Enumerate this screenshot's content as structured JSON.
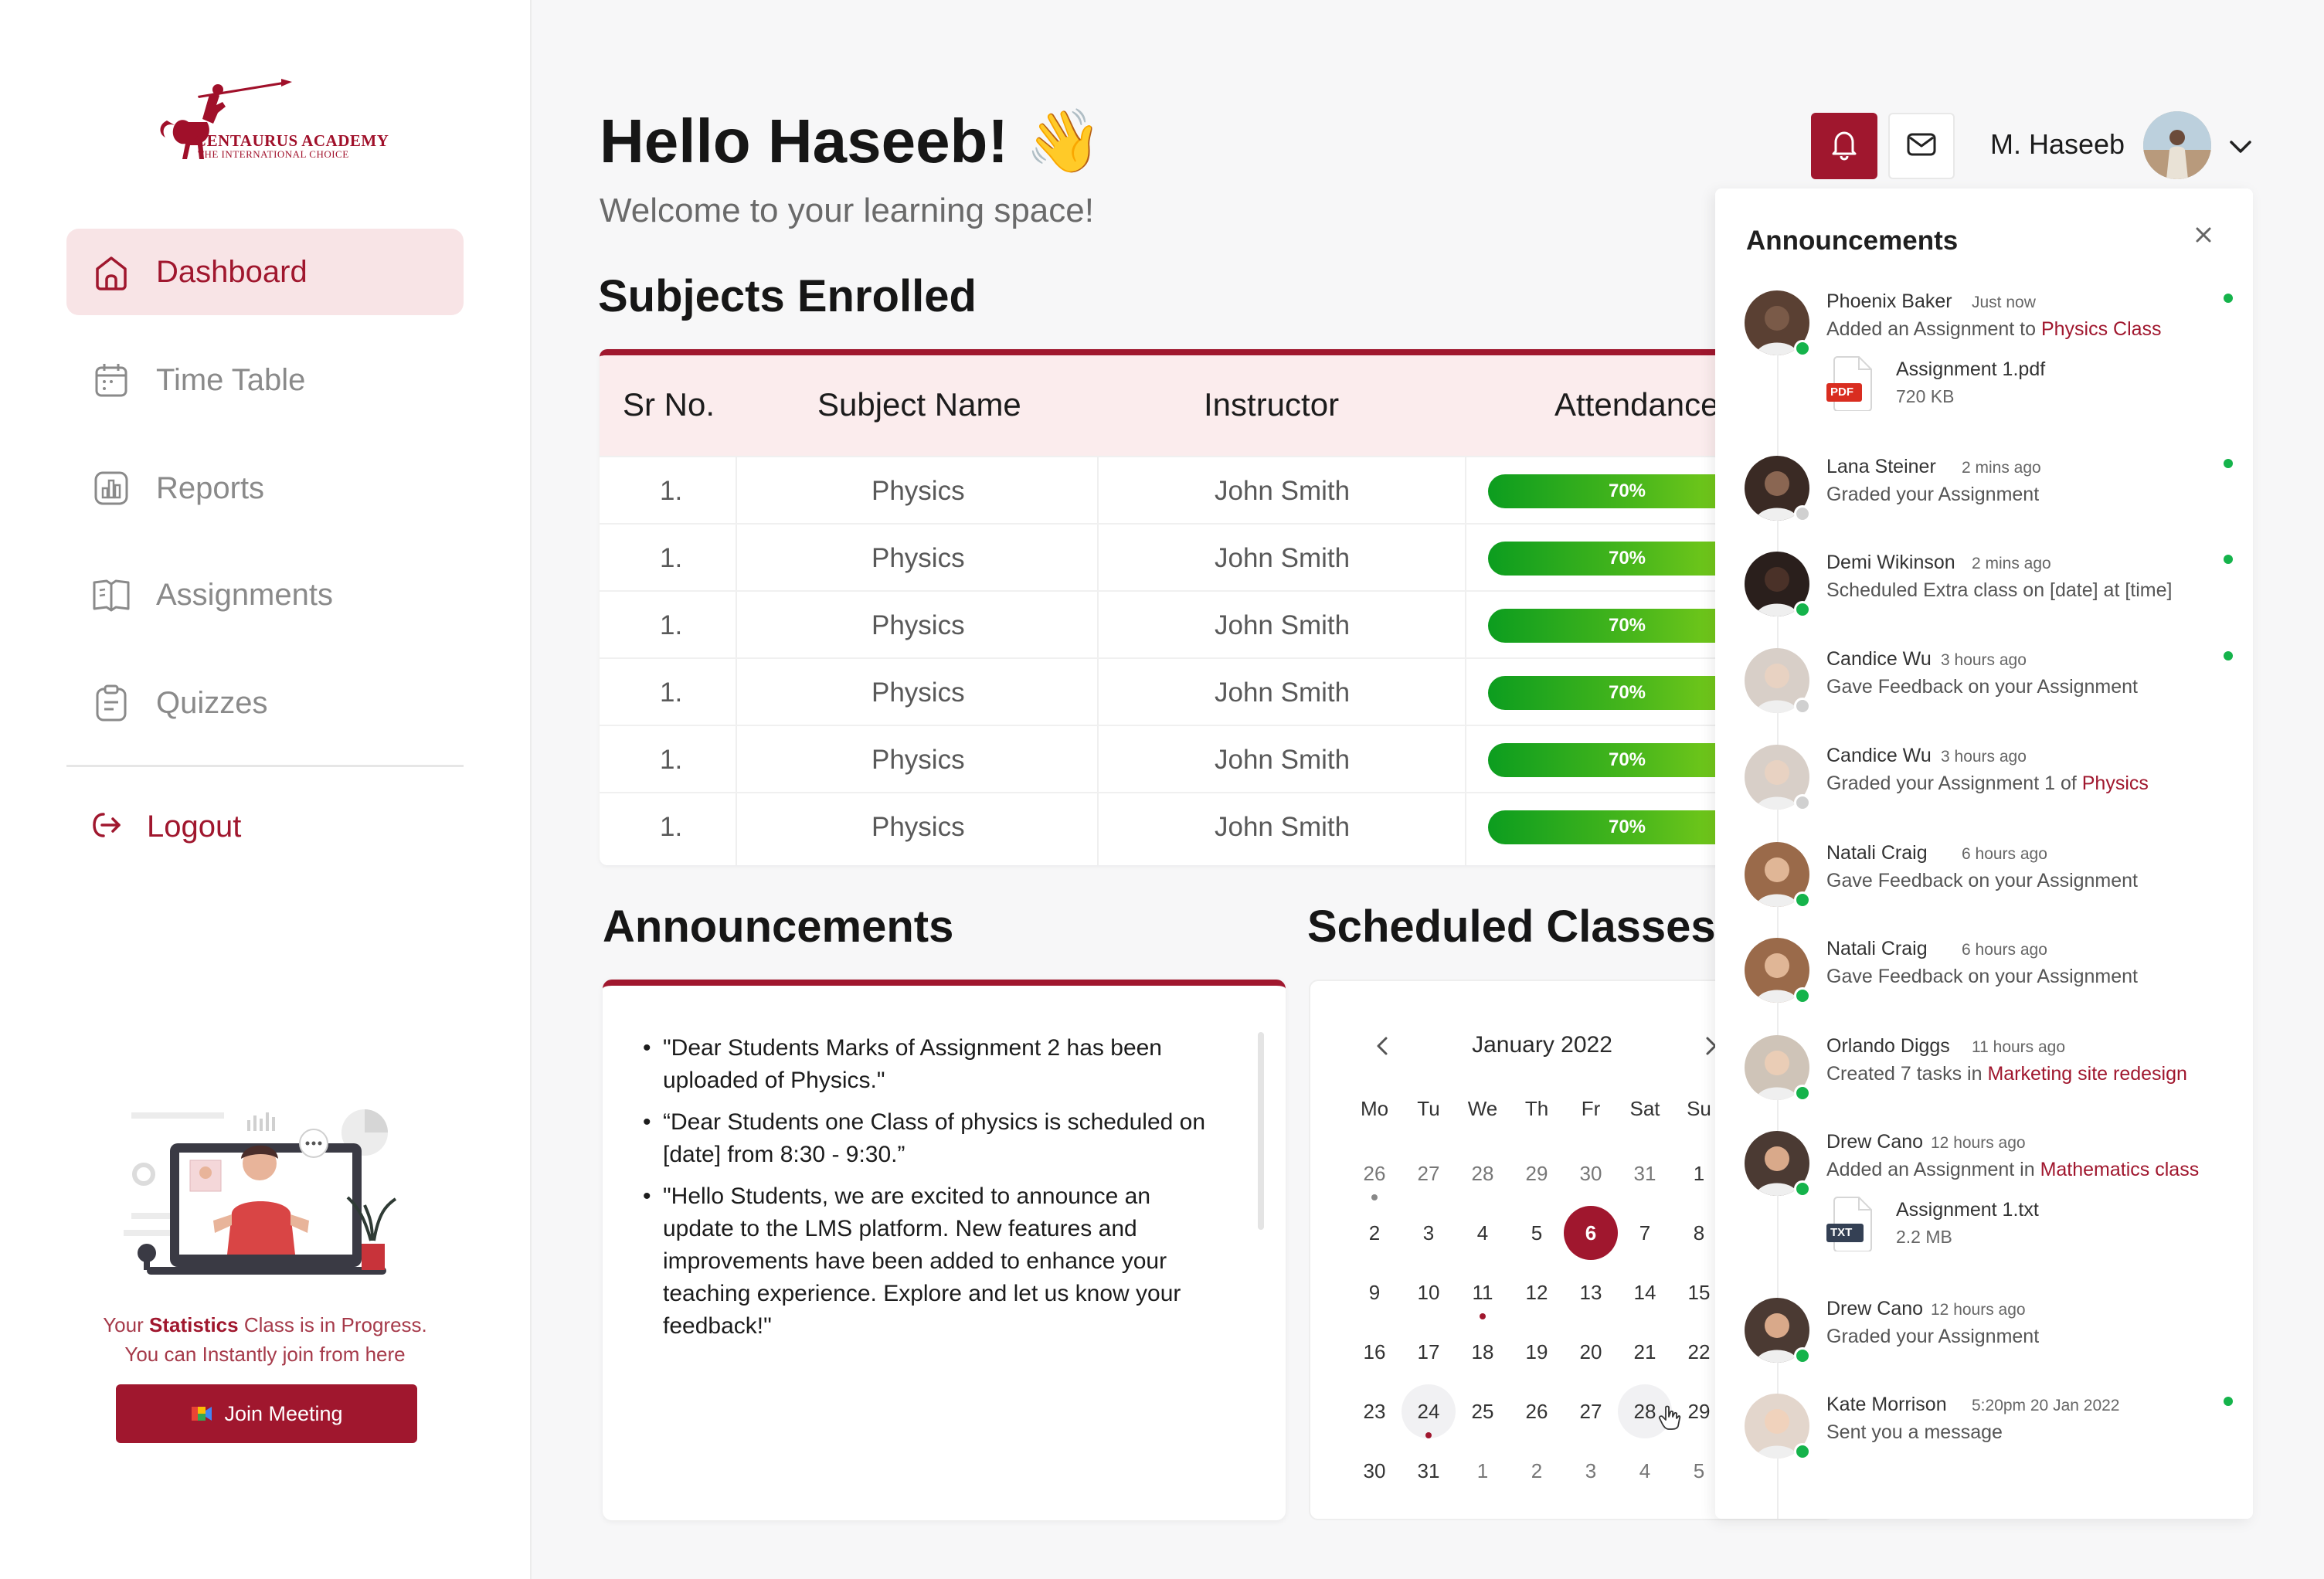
{
  "brand": {
    "name": "CENTAURUS ACADEMY",
    "tagline": "THE INTERNATIONAL CHOICE",
    "color": "#a0172e"
  },
  "sidebar": {
    "items": [
      {
        "label": "Dashboard",
        "icon": "home-icon",
        "active": true
      },
      {
        "label": "Time Table",
        "icon": "calendar-icon"
      },
      {
        "label": "Reports",
        "icon": "bar-chart-icon"
      },
      {
        "label": "Assignments",
        "icon": "book-icon"
      },
      {
        "label": "Quizzes",
        "icon": "clipboard-icon"
      }
    ],
    "logout": "Logout",
    "class_status_prefix": "Your ",
    "class_status_subject": "Statistics",
    "class_status_suffix": " Class is in Progress.",
    "class_status_line2": "You can Instantly join from here",
    "join_button": "Join Meeting"
  },
  "header": {
    "greeting": "Hello Haseeb! 👋",
    "subtitle": "Welcome to your learning space!",
    "user_name": "M. Haseeb"
  },
  "subjects": {
    "title": "Subjects Enrolled",
    "columns": [
      "Sr No.",
      "Subject Name",
      "Instructor",
      "Attendance"
    ],
    "rows": [
      {
        "sr": "1.",
        "subject": "Physics",
        "instructor": "John Smith",
        "attendance": "70%"
      },
      {
        "sr": "1.",
        "subject": "Physics",
        "instructor": "John Smith",
        "attendance": "70%"
      },
      {
        "sr": "1.",
        "subject": "Physics",
        "instructor": "John Smith",
        "attendance": "70%"
      },
      {
        "sr": "1.",
        "subject": "Physics",
        "instructor": "John Smith",
        "attendance": "70%"
      },
      {
        "sr": "1.",
        "subject": "Physics",
        "instructor": "John Smith",
        "attendance": "70%"
      },
      {
        "sr": "1.",
        "subject": "Physics",
        "instructor": "John Smith",
        "attendance": "70%"
      }
    ]
  },
  "announcements": {
    "title": "Announcements",
    "items": [
      "\"Dear Students Marks of Assignment 2 has been uploaded of Physics.\"",
      "“Dear Students one Class of physics is scheduled on [date] from 8:30 - 9:30.”",
      "\"Hello Students, we are excited to announce an update to the LMS platform. New features and improvements have been added to enhance your teaching experience. Explore and let us know your feedback!\""
    ]
  },
  "scheduled": {
    "title": "Scheduled Classes",
    "month": "January 2022",
    "weekdays": [
      "Mo",
      "Tu",
      "We",
      "Th",
      "Fr",
      "Sat",
      "Su"
    ],
    "weeks": [
      [
        "26",
        "27",
        "28",
        "29",
        "30",
        "31",
        "1"
      ],
      [
        "2",
        "3",
        "4",
        "5",
        "6",
        "7",
        "8"
      ],
      [
        "9",
        "10",
        "11",
        "12",
        "13",
        "14",
        "15"
      ],
      [
        "16",
        "17",
        "18",
        "19",
        "20",
        "21",
        "22"
      ],
      [
        "23",
        "24",
        "25",
        "26",
        "27",
        "28",
        "29"
      ],
      [
        "30",
        "31",
        "1",
        "2",
        "3",
        "4",
        "5"
      ]
    ],
    "selected_day": "6"
  },
  "notifications": {
    "title": "Announcements",
    "items": [
      {
        "name": "Phoenix Baker",
        "time": "Just now",
        "text": "Added an Assignment to ",
        "link": "Physics Class",
        "online": true,
        "unread": true,
        "file": {
          "name": "Assignment 1.pdf",
          "size": "720 KB",
          "type": "PDF"
        }
      },
      {
        "name": "Lana Steiner",
        "time": "2 mins ago",
        "text": "Graded your Assignment",
        "link": "",
        "online": false,
        "unread": true
      },
      {
        "name": "Demi Wikinson",
        "time": "2 mins ago",
        "text": "Scheduled Extra class on [date] at [time]",
        "link": "",
        "online": true,
        "unread": true
      },
      {
        "name": "Candice Wu",
        "time": "3 hours ago",
        "text": "Gave Feedback on your Assignment",
        "link": "",
        "online": false,
        "unread": true
      },
      {
        "name": "Candice Wu",
        "time": "3 hours ago",
        "text": "Graded your Assignment 1 of ",
        "link": "Physics",
        "online": false,
        "unread": false
      },
      {
        "name": "Natali Craig",
        "time": "6 hours ago",
        "text": "Gave Feedback on your Assignment",
        "link": "",
        "online": true,
        "unread": false
      },
      {
        "name": "Natali Craig",
        "time": "6 hours ago",
        "text": "Gave Feedback on your Assignment",
        "link": "",
        "online": true,
        "unread": false
      },
      {
        "name": "Orlando Diggs",
        "time": "11 hours ago",
        "text": "Created 7 tasks in ",
        "link": "Marketing site redesign",
        "online": true,
        "unread": false
      },
      {
        "name": "Drew Cano",
        "time": "12 hours ago",
        "text": "Added an Assignment in ",
        "link": "Mathematics class",
        "online": true,
        "unread": false,
        "file": {
          "name": "Assignment 1.txt",
          "size": "2.2 MB",
          "type": "TXT"
        }
      },
      {
        "name": "Drew Cano",
        "time": "12 hours ago",
        "text": "Graded your Assignment",
        "link": "",
        "online": true,
        "unread": false
      },
      {
        "name": "Kate Morrison",
        "time": "5:20pm 20 Jan 2022",
        "text": "Sent you a message",
        "link": "",
        "online": true,
        "unread": true
      }
    ]
  }
}
